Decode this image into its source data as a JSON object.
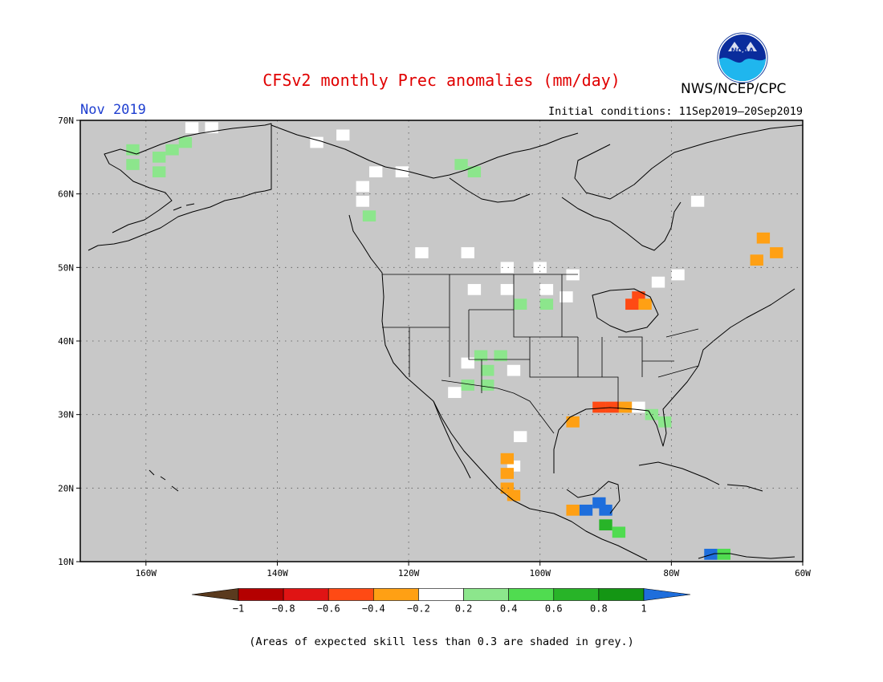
{
  "header": {
    "title": "CFSv2 monthly Prec anomalies (mm/day)",
    "month": "Nov 2019",
    "initial_conditions": "Initial conditions: 11Sep2019–20Sep2019",
    "agency": "NWS/NCEP/CPC",
    "logo_text": "NOAA"
  },
  "map": {
    "lon_range": [
      -170,
      -60
    ],
    "lat_range": [
      10,
      70
    ],
    "lon_ticks": [
      {
        "value": -160,
        "label": "160W"
      },
      {
        "value": -140,
        "label": "140W"
      },
      {
        "value": -120,
        "label": "120W"
      },
      {
        "value": -100,
        "label": "100W"
      },
      {
        "value": -80,
        "label": "80W"
      },
      {
        "value": -60,
        "label": "60W"
      }
    ],
    "lat_ticks": [
      {
        "value": 10,
        "label": "10N"
      },
      {
        "value": 20,
        "label": "20N"
      },
      {
        "value": 30,
        "label": "30N"
      },
      {
        "value": 40,
        "label": "40N"
      },
      {
        "value": 50,
        "label": "50N"
      },
      {
        "value": 60,
        "label": "60N"
      },
      {
        "value": 70,
        "label": "70N"
      }
    ],
    "gridlines": "dotted",
    "background_color": "#c8c8c8",
    "coast_color": "#000000"
  },
  "colorbar": {
    "labels": [
      "−1",
      "−0.8",
      "−0.6",
      "−0.4",
      "−0.2",
      "0.2",
      "0.4",
      "0.6",
      "0.8",
      "1"
    ],
    "colors": [
      "#5a3a1e",
      "#b40000",
      "#e01414",
      "#ff4a14",
      "#ffa014",
      "#ffffff",
      "#8ce68c",
      "#50dc50",
      "#28b428",
      "#149614",
      "#1e6edc"
    ]
  },
  "anomalies": [
    {
      "lon": -162,
      "lat": 64,
      "value": 0.3
    },
    {
      "lon": -158,
      "lat": 65,
      "value": 0.3
    },
    {
      "lon": -162,
      "lat": 66,
      "value": 0.3
    },
    {
      "lon": -156,
      "lat": 66,
      "value": 0.3
    },
    {
      "lon": -158,
      "lat": 63,
      "value": 0.3
    },
    {
      "lon": -154,
      "lat": 67,
      "value": 0.3
    },
    {
      "lon": -153,
      "lat": 69,
      "value": 0.0
    },
    {
      "lon": -150,
      "lat": 69,
      "value": 0.0
    },
    {
      "lon": -134,
      "lat": 67,
      "value": 0.0
    },
    {
      "lon": -130,
      "lat": 68,
      "value": 0.0
    },
    {
      "lon": -125,
      "lat": 63,
      "value": 0.0
    },
    {
      "lon": -121,
      "lat": 63,
      "value": 0.0
    },
    {
      "lon": -127,
      "lat": 61,
      "value": 0.0
    },
    {
      "lon": -127,
      "lat": 59,
      "value": 0.0
    },
    {
      "lon": -126,
      "lat": 57,
      "value": 0.3
    },
    {
      "lon": -112,
      "lat": 64,
      "value": 0.3
    },
    {
      "lon": -110,
      "lat": 63,
      "value": 0.3
    },
    {
      "lon": -118,
      "lat": 52,
      "value": 0.0
    },
    {
      "lon": -111,
      "lat": 52,
      "value": 0.0
    },
    {
      "lon": -105,
      "lat": 50,
      "value": 0.0
    },
    {
      "lon": -100,
      "lat": 50,
      "value": 0.0
    },
    {
      "lon": -95,
      "lat": 49,
      "value": 0.0
    },
    {
      "lon": -110,
      "lat": 47,
      "value": 0.0
    },
    {
      "lon": -105,
      "lat": 47,
      "value": 0.0
    },
    {
      "lon": -99,
      "lat": 47,
      "value": 0.0
    },
    {
      "lon": -103,
      "lat": 45,
      "value": 0.3
    },
    {
      "lon": -99,
      "lat": 45,
      "value": 0.3
    },
    {
      "lon": -96,
      "lat": 46,
      "value": 0.0
    },
    {
      "lon": -85,
      "lat": 46,
      "value": -0.6
    },
    {
      "lon": -86,
      "lat": 45,
      "value": -0.6
    },
    {
      "lon": -84,
      "lat": 45,
      "value": -0.4
    },
    {
      "lon": -82,
      "lat": 48,
      "value": 0.0
    },
    {
      "lon": -79,
      "lat": 49,
      "value": 0.0
    },
    {
      "lon": -76,
      "lat": 59,
      "value": 0.0
    },
    {
      "lon": -66,
      "lat": 54,
      "value": -0.4
    },
    {
      "lon": -64,
      "lat": 52,
      "value": -0.4
    },
    {
      "lon": -67,
      "lat": 51,
      "value": -0.4
    },
    {
      "lon": -109,
      "lat": 38,
      "value": 0.3
    },
    {
      "lon": -106,
      "lat": 38,
      "value": 0.3
    },
    {
      "lon": -111,
      "lat": 37,
      "value": 0.0
    },
    {
      "lon": -108,
      "lat": 36,
      "value": 0.3
    },
    {
      "lon": -111,
      "lat": 34,
      "value": 0.3
    },
    {
      "lon": -108,
      "lat": 34,
      "value": 0.3
    },
    {
      "lon": -113,
      "lat": 33,
      "value": 0.0
    },
    {
      "lon": -104,
      "lat": 36,
      "value": 0.0
    },
    {
      "lon": -91,
      "lat": 31,
      "value": -0.6
    },
    {
      "lon": -89,
      "lat": 31,
      "value": -0.6
    },
    {
      "lon": -87,
      "lat": 31,
      "value": -0.4
    },
    {
      "lon": -85,
      "lat": 31,
      "value": 0.0
    },
    {
      "lon": -83,
      "lat": 30,
      "value": 0.3
    },
    {
      "lon": -81,
      "lat": 29,
      "value": 0.3
    },
    {
      "lon": -95,
      "lat": 29,
      "value": -0.4
    },
    {
      "lon": -103,
      "lat": 27,
      "value": 0.0
    },
    {
      "lon": -104,
      "lat": 23,
      "value": 0.0
    },
    {
      "lon": -105,
      "lat": 24,
      "value": -0.4
    },
    {
      "lon": -105,
      "lat": 22,
      "value": -0.4
    },
    {
      "lon": -105,
      "lat": 20,
      "value": -0.4
    },
    {
      "lon": -104,
      "lat": 19,
      "value": -0.3
    },
    {
      "lon": -91,
      "lat": 18,
      "value": 1.1
    },
    {
      "lon": -93,
      "lat": 17,
      "value": 1.1
    },
    {
      "lon": -90,
      "lat": 17,
      "value": 1.1
    },
    {
      "lon": -95,
      "lat": 17,
      "value": -0.4
    },
    {
      "lon": -90,
      "lat": 15,
      "value": 0.7
    },
    {
      "lon": -88,
      "lat": 14,
      "value": 0.5
    },
    {
      "lon": -74,
      "lat": 11,
      "value": 1.1
    },
    {
      "lon": -72,
      "lat": 11,
      "value": 0.5
    }
  ],
  "footnote": "(Areas of expected skill less than 0.3 are shaded in grey.)"
}
